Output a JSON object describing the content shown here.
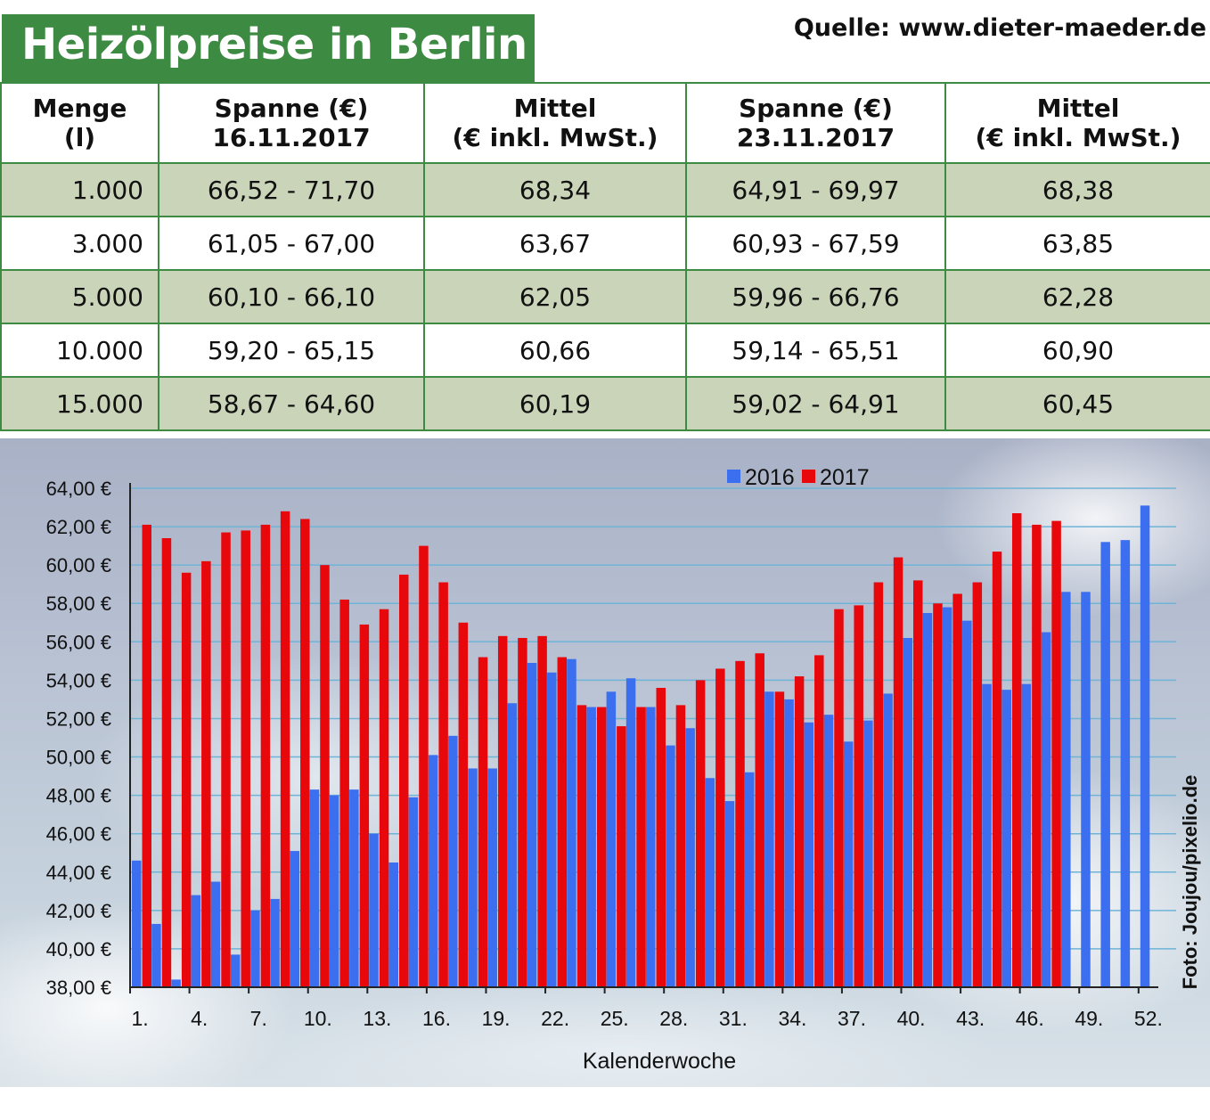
{
  "header": {
    "title": "Heizölpreise in Berlin",
    "source": "Quelle: www.dieter-maeder.de"
  },
  "table": {
    "headers": [
      [
        "Menge",
        "(l)"
      ],
      [
        "Spanne (€)",
        "16.11.2017"
      ],
      [
        "Mittel",
        "(€ inkl. MwSt.)"
      ],
      [
        "Spanne (€)",
        "23.11.2017"
      ],
      [
        "Mittel",
        "(€ inkl. MwSt.)"
      ]
    ],
    "rows": [
      [
        "1.000",
        "66,52 - 71,70",
        "68,34",
        "64,91 - 69,97",
        "68,38"
      ],
      [
        "3.000",
        "61,05 - 67,00",
        "63,67",
        "60,93 - 67,59",
        "63,85"
      ],
      [
        "5.000",
        "60,10 - 66,10",
        "62,05",
        "59,96 - 66,76",
        "62,28"
      ],
      [
        "10.000",
        "59,20 - 65,15",
        "60,66",
        "59,14 - 65,51",
        "60,90"
      ],
      [
        "15.000",
        "58,67 - 64,60",
        "60,19",
        "59,02 - 64,91",
        "60,45"
      ]
    ]
  },
  "chart_data": {
    "type": "bar",
    "title": "",
    "xlabel": "Kalenderwoche",
    "ylabel": "",
    "ylim": [
      38,
      64
    ],
    "ytick_step": 2,
    "ytick_labels": [
      "38,00 €",
      "40,00 €",
      "42,00 €",
      "44,00 €",
      "46,00 €",
      "48,00 €",
      "50,00 €",
      "52,00 €",
      "54,00 €",
      "56,00 €",
      "58,00 €",
      "60,00 €",
      "62,00 €",
      "64,00 €"
    ],
    "xtick_labels": [
      "1.",
      "4.",
      "7.",
      "10.",
      "13.",
      "16.",
      "19.",
      "22.",
      "25.",
      "28.",
      "31.",
      "34.",
      "37.",
      "40.",
      "43.",
      "46.",
      "49.",
      "52."
    ],
    "grid": true,
    "legend_position": "top-right",
    "categories": [
      1,
      2,
      3,
      4,
      5,
      6,
      7,
      8,
      9,
      10,
      11,
      12,
      13,
      14,
      15,
      16,
      17,
      18,
      19,
      20,
      21,
      22,
      23,
      24,
      25,
      26,
      27,
      28,
      29,
      30,
      31,
      32,
      33,
      34,
      35,
      36,
      37,
      38,
      39,
      40,
      41,
      42,
      43,
      44,
      45,
      46,
      47,
      48,
      49,
      50,
      51,
      52
    ],
    "series": [
      {
        "name": "2016",
        "color": "#3c6ef0",
        "values": [
          44.6,
          41.3,
          38.4,
          42.8,
          43.5,
          39.7,
          42.0,
          42.6,
          45.1,
          48.3,
          48.0,
          48.3,
          46.0,
          44.5,
          47.9,
          50.1,
          51.1,
          49.4,
          49.4,
          52.8,
          54.9,
          54.4,
          55.1,
          52.6,
          53.4,
          54.1,
          52.6,
          50.6,
          51.5,
          48.9,
          47.7,
          49.2,
          53.4,
          53.0,
          51.8,
          52.2,
          50.8,
          51.9,
          53.3,
          56.2,
          57.5,
          57.8,
          57.1,
          53.8,
          53.5,
          53.8,
          56.5,
          58.6,
          58.6,
          61.2,
          61.3,
          63.1
        ]
      },
      {
        "name": "2017",
        "color": "#e8080c",
        "values": [
          62.1,
          61.4,
          59.6,
          60.2,
          61.7,
          61.8,
          62.1,
          62.8,
          62.4,
          60.0,
          58.2,
          56.9,
          57.7,
          59.5,
          61.0,
          59.1,
          57.0,
          55.2,
          56.3,
          56.2,
          56.3,
          55.2,
          52.7,
          52.6,
          51.6,
          52.6,
          53.6,
          52.7,
          54.0,
          54.6,
          55.0,
          55.4,
          53.4,
          54.2,
          55.3,
          57.7,
          57.9,
          59.1,
          60.4,
          59.2,
          58.0,
          58.5,
          59.1,
          60.7,
          62.7,
          62.1,
          62.3,
          null,
          null,
          null,
          null,
          null
        ]
      }
    ]
  },
  "credit": "Foto: Joujou/pixelio.de",
  "colors": {
    "title_bg": "#3d8a43",
    "row_shade": "#c9d4b8",
    "border": "#3d8a43"
  }
}
